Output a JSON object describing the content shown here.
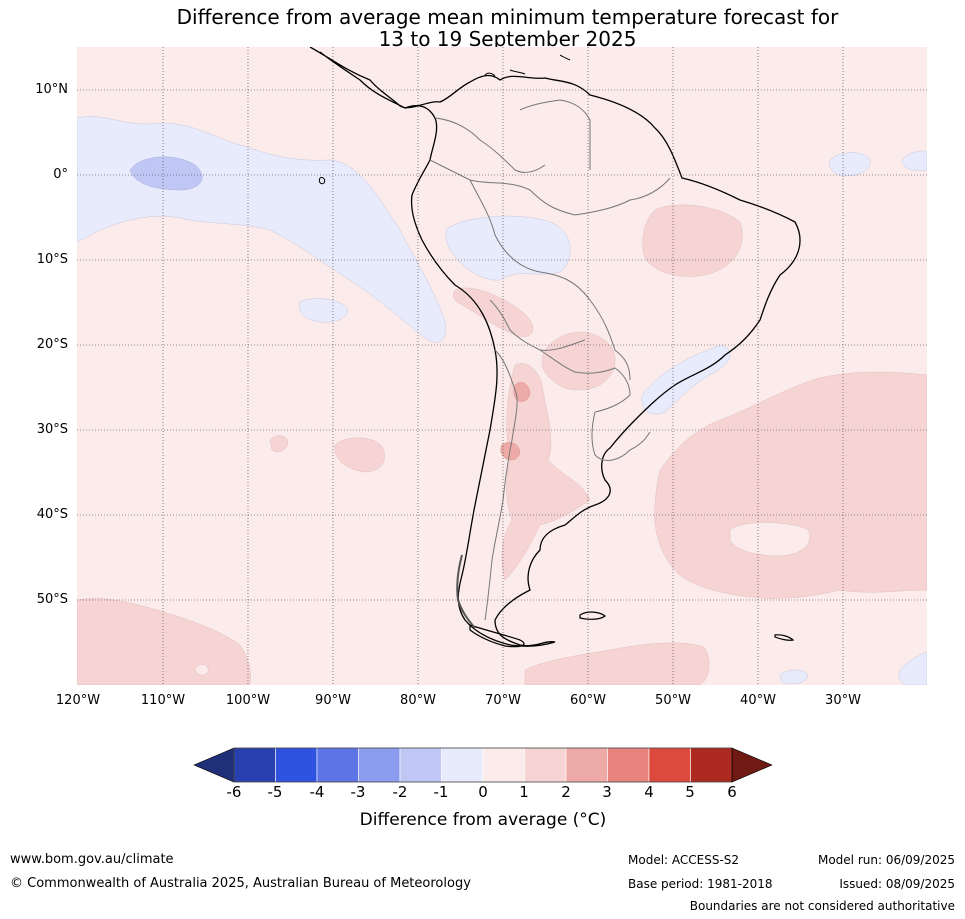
{
  "title_line1": "Difference from average mean minimum temperature forecast for",
  "title_line2": "13 to 19 September 2025",
  "lat_labels": [
    "10°N",
    "0°",
    "10°S",
    "20°S",
    "30°S",
    "40°S",
    "50°S"
  ],
  "lon_labels": [
    "120°W",
    "110°W",
    "100°W",
    "90°W",
    "80°W",
    "70°W",
    "60°W",
    "50°W",
    "40°W",
    "30°W"
  ],
  "colorbar": {
    "ticks": [
      "-6",
      "-5",
      "-4",
      "-3",
      "-2",
      "-1",
      "0",
      "1",
      "2",
      "3",
      "4",
      "5",
      "6"
    ],
    "colors": [
      "#1f2f78",
      "#283fb0",
      "#2f52e0",
      "#5c74e6",
      "#8b9bee",
      "#c0c7f4",
      "#e8ebfb",
      "#fbebeb",
      "#f6d4d4",
      "#eeaaa6",
      "#e8847d",
      "#dc4a3d",
      "#ac2a1f",
      "#701a14"
    ],
    "label": "Difference from average (°C)"
  },
  "footer": {
    "website": "www.bom.gov.au/climate",
    "copyright": "© Commonwealth of Australia 2025, Australian Bureau of Meteorology",
    "model": "Model: ACCESS-S2",
    "base_period": "Base period: 1981-2018",
    "model_run": "Model run: 06/09/2025",
    "issued": "Issued: 08/09/2025",
    "disclaimer": "Boundaries are not considered authoritative"
  }
}
